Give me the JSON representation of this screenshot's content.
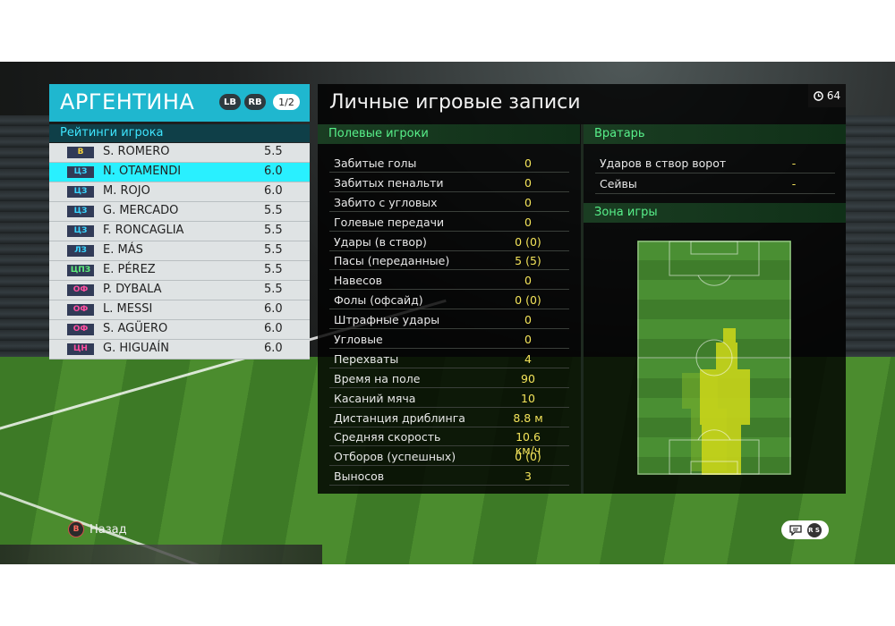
{
  "team": {
    "name": "АРГЕНТИНА",
    "lb_label": "LB",
    "rb_label": "RB",
    "page_indicator": "1/2"
  },
  "ratings_title": "Рейтинги игрока",
  "players": [
    {
      "pos": "В",
      "pos_color": "#f3d23c",
      "name": "S. ROMERO",
      "rating": "5.5",
      "selected": false
    },
    {
      "pos": "ЦЗ",
      "pos_color": "#39d6ff",
      "name": "N. OTAMENDI",
      "rating": "6.0",
      "selected": true
    },
    {
      "pos": "ЦЗ",
      "pos_color": "#39d6ff",
      "name": "M. ROJO",
      "rating": "6.0",
      "selected": false
    },
    {
      "pos": "ЦЗ",
      "pos_color": "#39d6ff",
      "name": "G. MERCADO",
      "rating": "5.5",
      "selected": false
    },
    {
      "pos": "ЦЗ",
      "pos_color": "#39d6ff",
      "name": "F. RONCAGLIA",
      "rating": "5.5",
      "selected": false
    },
    {
      "pos": "ЛЗ",
      "pos_color": "#39d6ff",
      "name": "E. MÁS",
      "rating": "5.5",
      "selected": false
    },
    {
      "pos": "ЦПЗ",
      "pos_color": "#5ef07a",
      "name": "E. PÉREZ",
      "rating": "5.5",
      "selected": false
    },
    {
      "pos": "ОФ",
      "pos_color": "#ff4fa0",
      "name": "P. DYBALA",
      "rating": "5.5",
      "selected": false
    },
    {
      "pos": "ОФ",
      "pos_color": "#ff4fa0",
      "name": "L. MESSI",
      "rating": "6.0",
      "selected": false
    },
    {
      "pos": "ОФ",
      "pos_color": "#ff4fa0",
      "name": "S. AGÜERO",
      "rating": "6.0",
      "selected": false
    },
    {
      "pos": "ЦН",
      "pos_color": "#ff4fa0",
      "name": "G. HIGUAÍN",
      "rating": "6.0",
      "selected": false
    }
  ],
  "main": {
    "title": "Личные игровые записи",
    "timer": "64",
    "field_header": "Полевые игроки",
    "gk_header": "Вратарь",
    "zone_header": "Зона игры"
  },
  "field_stats": [
    {
      "label": "Забитые голы",
      "value": "0"
    },
    {
      "label": "Забитых пенальти",
      "value": "0"
    },
    {
      "label": "Забито с угловых",
      "value": "0"
    },
    {
      "label": "Голевые передачи",
      "value": "0"
    },
    {
      "label": "Удары (в створ)",
      "value": "0 (0)"
    },
    {
      "label": "Пасы (переданные)",
      "value": "5 (5)"
    },
    {
      "label": "Навесов",
      "value": "0"
    },
    {
      "label": "Фолы (офсайд)",
      "value": "0 (0)"
    },
    {
      "label": "Штрафные удары",
      "value": "0"
    },
    {
      "label": "Угловые",
      "value": "0"
    },
    {
      "label": "Перехваты",
      "value": "4"
    },
    {
      "label": "Время на поле",
      "value": "90"
    },
    {
      "label": "Касаний мяча",
      "value": "10"
    },
    {
      "label": "Дистанция дриблинга",
      "value": "8.8 м"
    },
    {
      "label": "Средняя скорость",
      "value": "10.6 км/ч"
    },
    {
      "label": "Отборов (успешных)",
      "value": "0 (0)"
    },
    {
      "label": "Выносов",
      "value": "3"
    }
  ],
  "gk_stats": [
    {
      "label": "Ударов в створ ворот",
      "value": "-"
    },
    {
      "label": "Сейвы",
      "value": "-"
    }
  ],
  "controls": {
    "back_button": "B",
    "back_label": "Назад",
    "rs_button": "R S"
  },
  "colors": {
    "accent_cyan": "#1fb7cf",
    "selected_row": "#29f0ff",
    "stat_value": "#f3e35a",
    "section_green": "#58f08a"
  }
}
